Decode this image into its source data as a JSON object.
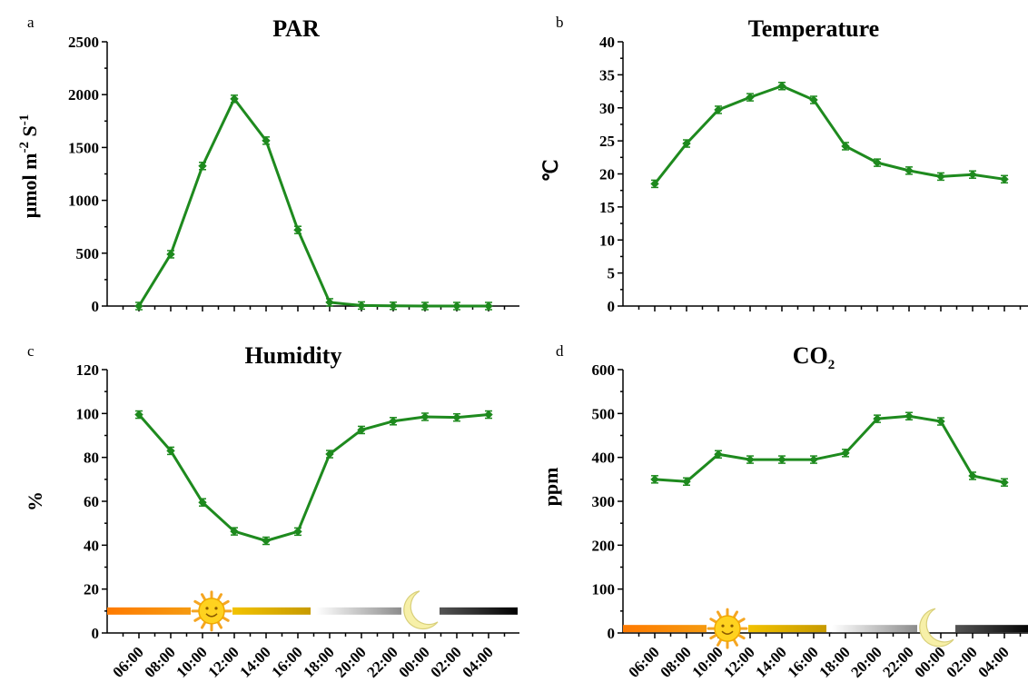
{
  "chart_data": [
    {
      "panel": "a",
      "type": "line",
      "title": "PAR",
      "ylabel": "μmol m-2 S-1",
      "ylabel_parts": {
        "main": "μmol m",
        "sup1": "-2",
        "mid": " S",
        "sup2": "-1"
      },
      "x": [
        "06:00",
        "08:00",
        "10:00",
        "12:00",
        "14:00",
        "16:00",
        "18:00",
        "20:00",
        "22:00",
        "00:00",
        "02:00",
        "04:00"
      ],
      "ylim": [
        0,
        2500
      ],
      "yticks": [
        0,
        500,
        1000,
        1500,
        2000,
        2500
      ],
      "series": [
        {
          "values": [
            0,
            490,
            1325,
            1960,
            1565,
            720,
            35,
            5,
            2,
            0,
            0,
            0
          ]
        }
      ],
      "show_xticklabels": false,
      "day_night_bar": false
    },
    {
      "panel": "b",
      "type": "line",
      "title": "Temperature",
      "ylabel": "℃",
      "x": [
        "06:00",
        "08:00",
        "10:00",
        "12:00",
        "14:00",
        "16:00",
        "18:00",
        "20:00",
        "22:00",
        "00:00",
        "02:00",
        "04:00"
      ],
      "ylim": [
        0,
        40
      ],
      "yticks": [
        0,
        5,
        10,
        15,
        20,
        25,
        30,
        35,
        40
      ],
      "series": [
        {
          "values": [
            18.5,
            24.6,
            29.7,
            31.6,
            33.3,
            31.2,
            24.2,
            21.7,
            20.5,
            19.6,
            19.9,
            19.2
          ]
        }
      ],
      "show_xticklabels": false,
      "day_night_bar": false
    },
    {
      "panel": "c",
      "type": "line",
      "title": "Humidity",
      "ylabel": "%",
      "x": [
        "06:00",
        "08:00",
        "10:00",
        "12:00",
        "14:00",
        "16:00",
        "18:00",
        "20:00",
        "22:00",
        "00:00",
        "02:00",
        "04:00"
      ],
      "ylim": [
        0,
        120
      ],
      "yticks": [
        0,
        20,
        40,
        60,
        80,
        100,
        120
      ],
      "series": [
        {
          "values": [
            99.5,
            83,
            59.5,
            46.3,
            42,
            46.2,
            81.5,
            92.5,
            96.5,
            98.5,
            98.2,
            99.5
          ]
        }
      ],
      "show_xticklabels": true,
      "day_night_bar": true
    },
    {
      "panel": "d",
      "type": "line",
      "title": "CO2",
      "title_parts": {
        "main": "CO",
        "sub": "2"
      },
      "ylabel": "ppm",
      "x": [
        "06:00",
        "08:00",
        "10:00",
        "12:00",
        "14:00",
        "16:00",
        "18:00",
        "20:00",
        "22:00",
        "00:00",
        "02:00",
        "04:00"
      ],
      "ylim": [
        0,
        600
      ],
      "yticks": [
        0,
        100,
        200,
        300,
        400,
        500,
        600
      ],
      "series": [
        {
          "values": [
            350,
            345,
            407,
            395,
            395,
            395,
            410,
            488,
            494,
            482,
            358,
            343
          ]
        }
      ],
      "show_xticklabels": true,
      "day_night_bar": true
    }
  ],
  "colors": {
    "series": "#1e8a1e"
  },
  "icons": {
    "day": "sun-icon",
    "night": "moon-icon"
  }
}
